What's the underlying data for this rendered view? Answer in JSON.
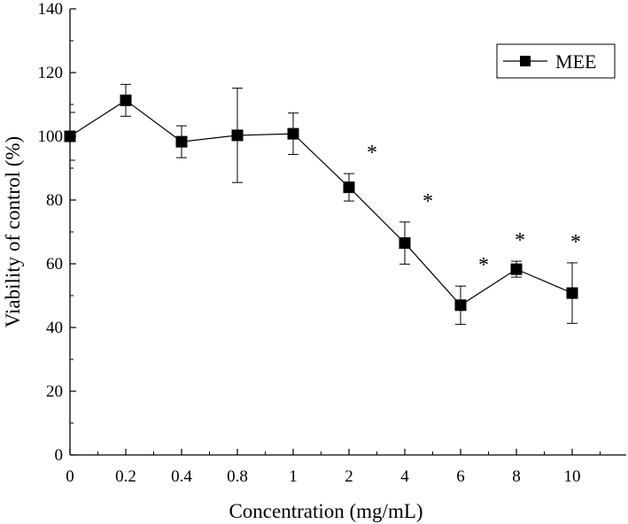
{
  "chart_data": {
    "type": "line",
    "title": "",
    "xlabel": "Concentration (mg/mL)",
    "ylabel": "Viability of control (%)",
    "ylim": [
      0,
      140
    ],
    "yticks": [
      0,
      20,
      40,
      60,
      80,
      100,
      120,
      140
    ],
    "categories": [
      "0",
      "0.2",
      "0.4",
      "0.8",
      "1",
      "2",
      "4",
      "6",
      "8",
      "10"
    ],
    "legend_position": "top-right",
    "grid": false,
    "series": [
      {
        "name": "MEE",
        "marker": "square",
        "color": "#000000",
        "values": [
          100.0,
          111.3,
          98.3,
          100.3,
          100.8,
          84.0,
          66.5,
          47.0,
          58.3,
          50.8
        ],
        "error": [
          7.5,
          5.0,
          5.0,
          14.8,
          6.5,
          4.3,
          6.6,
          6.0,
          2.5,
          9.5
        ],
        "significance": [
          "",
          "",
          "",
          "",
          "",
          "*",
          "*",
          "*",
          "*",
          "*"
        ]
      }
    ]
  }
}
